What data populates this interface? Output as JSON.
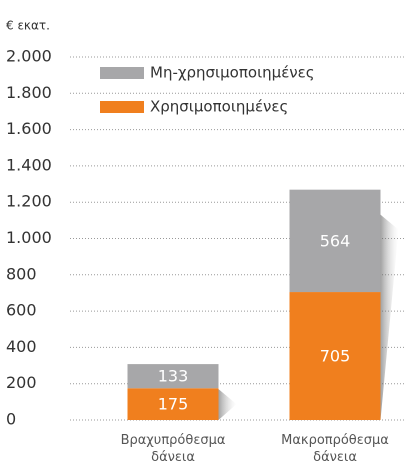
{
  "chart_data": {
    "type": "stacked_bar",
    "y_axis_label": "€ εκατ.",
    "categories": [
      "Βραχυπρόθεσμα δάνεια",
      "Μακροπρόθεσμα δάνεια"
    ],
    "series": [
      {
        "name": "Χρησιμοποιημένες",
        "color": "#f07f1e",
        "values": [
          175,
          705
        ]
      },
      {
        "name": "Μη-χρησιμοποιημένες",
        "color": "#a7a7a9",
        "values": [
          133,
          564
        ]
      }
    ],
    "ylim": [
      0,
      2000
    ],
    "yticks": [
      0,
      200,
      400,
      600,
      800,
      {
        "value": 1000,
        "label": "1.000"
      },
      {
        "value": 1200,
        "label": "1.200"
      },
      {
        "value": 1400,
        "label": "1.400"
      },
      {
        "value": 1600,
        "label": "1.600"
      },
      {
        "value": 1800,
        "label": "1.800"
      },
      {
        "value": 2000,
        "label": "2.000"
      }
    ],
    "grid": true
  }
}
